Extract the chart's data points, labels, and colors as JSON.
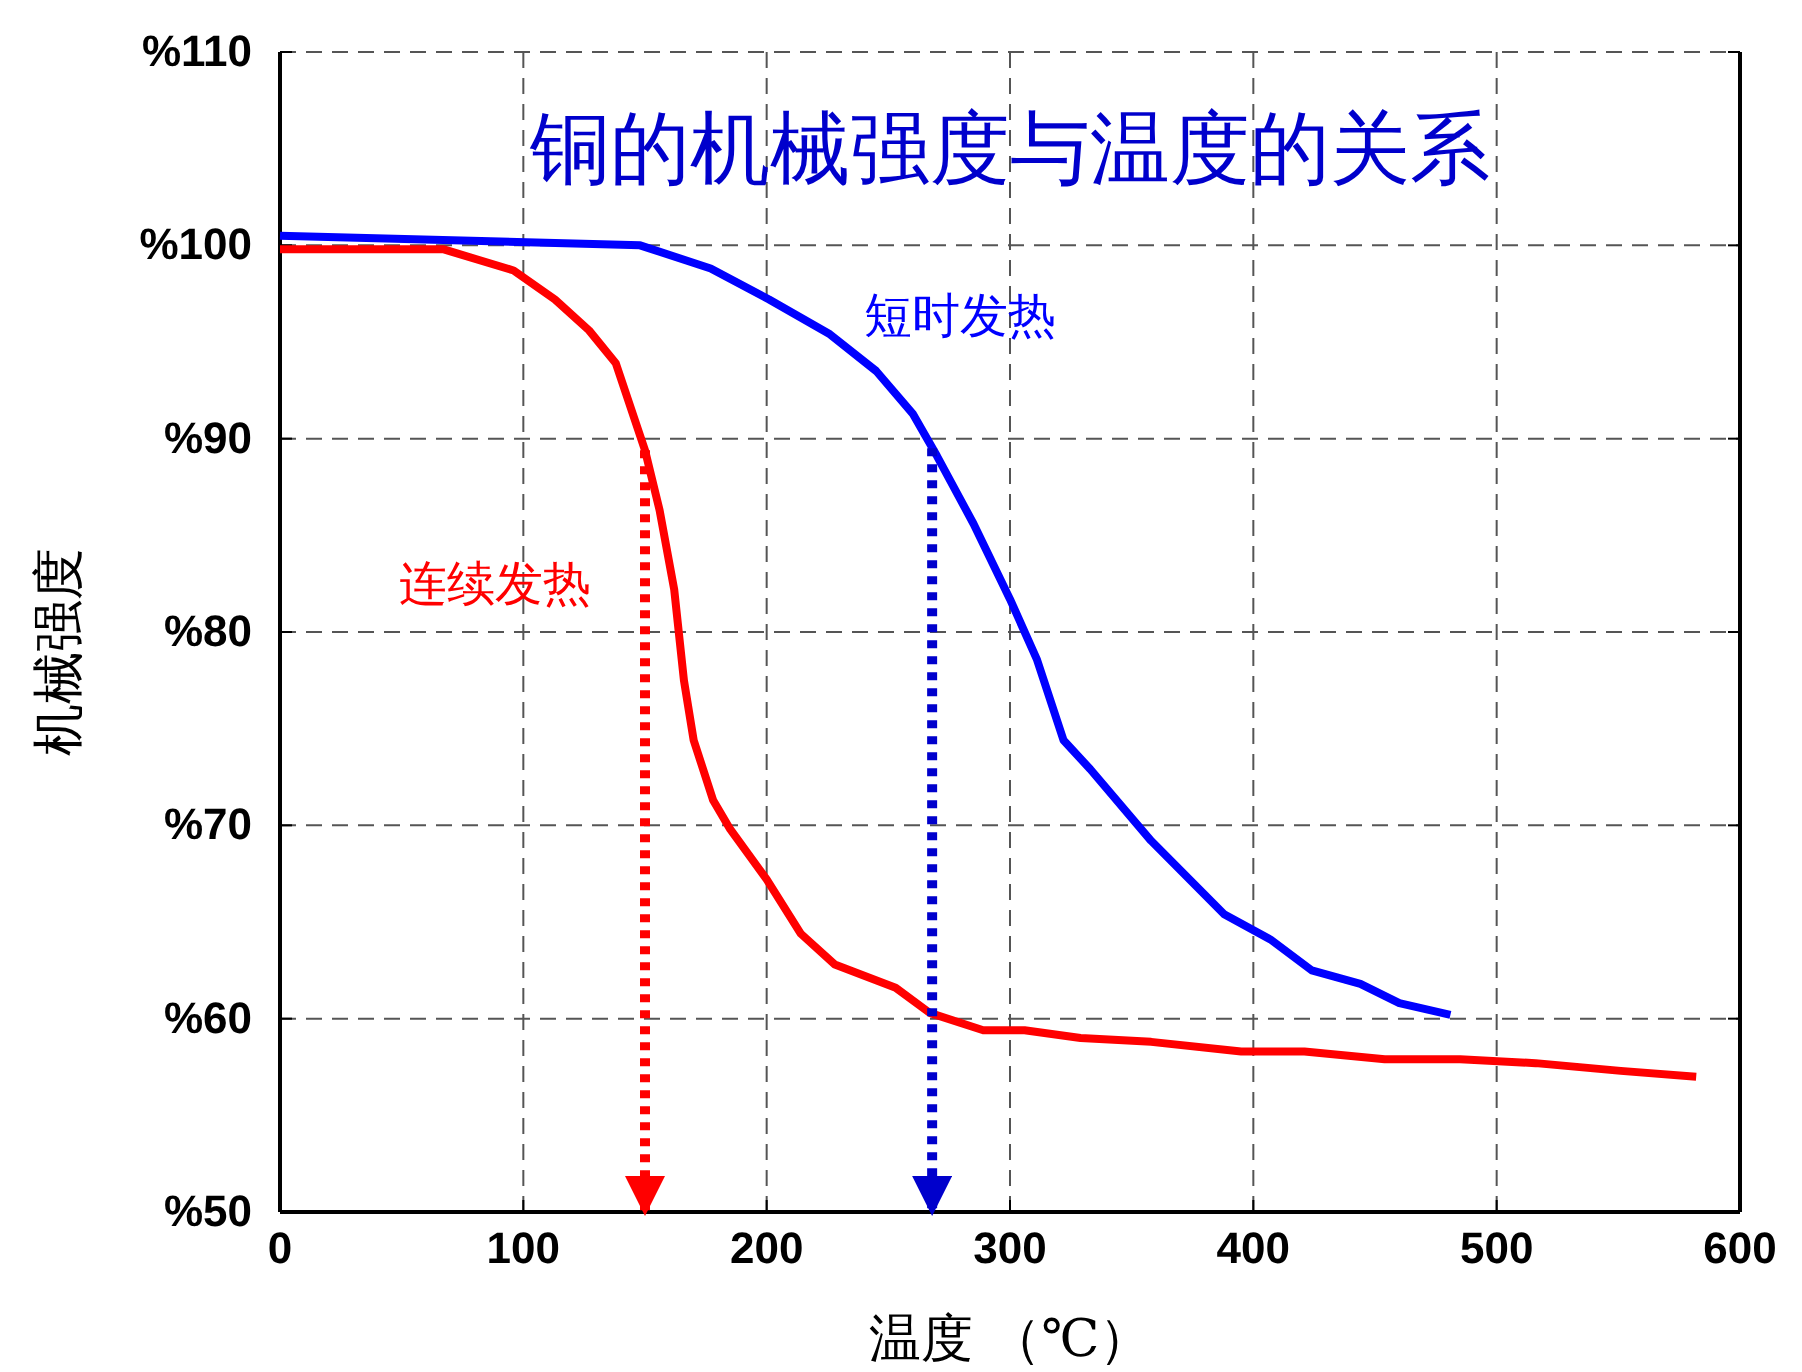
{
  "chart_data": {
    "type": "line",
    "title": "铜的机械强度与温度的关系",
    "xlabel": "温度 （℃）",
    "ylabel": "机械强度",
    "xlim": [
      0,
      600
    ],
    "xticks": [
      0,
      100,
      200,
      300,
      400,
      500,
      600
    ],
    "ylim": [
      50,
      110
    ],
    "yticks": [
      {
        "value": 50,
        "label": "%50"
      },
      {
        "value": 60,
        "label": "%60"
      },
      {
        "value": 70,
        "label": "%70"
      },
      {
        "value": 80,
        "label": "%80"
      },
      {
        "value": 90,
        "label": "%90"
      },
      {
        "value": 100,
        "label": "%100"
      },
      {
        "value": 110,
        "label": "%110"
      }
    ],
    "grid": true,
    "legend": false,
    "marker": "none",
    "series": [
      {
        "name": "短时发热",
        "color": "#0000ff",
        "line_style": "solid",
        "x": [
          0,
          148,
          177,
          201,
          226,
          245,
          260,
          270,
          285,
          300,
          311,
          322,
          333,
          358,
          388,
          407,
          424,
          444,
          460,
          481
        ],
        "values": [
          100.5,
          100.0,
          98.8,
          97.2,
          95.4,
          93.5,
          91.3,
          89.1,
          85.6,
          81.7,
          78.6,
          74.4,
          72.9,
          69.2,
          65.4,
          64.1,
          62.5,
          61.8,
          60.8,
          60.2
        ]
      },
      {
        "name": "连续发热",
        "color": "#ff0000",
        "line_style": "solid",
        "x": [
          0,
          67,
          96,
          113,
          127,
          138,
          150,
          156,
          162,
          166,
          170,
          178,
          185,
          200,
          214,
          228,
          253,
          267,
          289,
          306,
          329,
          358,
          395,
          421,
          454,
          485,
          516,
          551,
          582
        ],
        "values": [
          99.8,
          99.8,
          98.7,
          97.2,
          95.6,
          93.9,
          89.4,
          86.3,
          82.2,
          77.5,
          74.4,
          71.3,
          69.8,
          67.2,
          64.4,
          62.8,
          61.6,
          60.3,
          59.4,
          59.4,
          59.0,
          58.8,
          58.3,
          58.3,
          57.9,
          57.9,
          57.7,
          57.3,
          57.0
        ]
      },
      {
        "color": "#ff0000",
        "line_style": "dotted",
        "x": [
          150,
          150
        ],
        "values": [
          89.4,
          50
        ]
      },
      {
        "color": "#0000cc",
        "line_style": "dotted",
        "x": [
          268,
          268
        ],
        "values": [
          89.5,
          50
        ]
      }
    ]
  }
}
